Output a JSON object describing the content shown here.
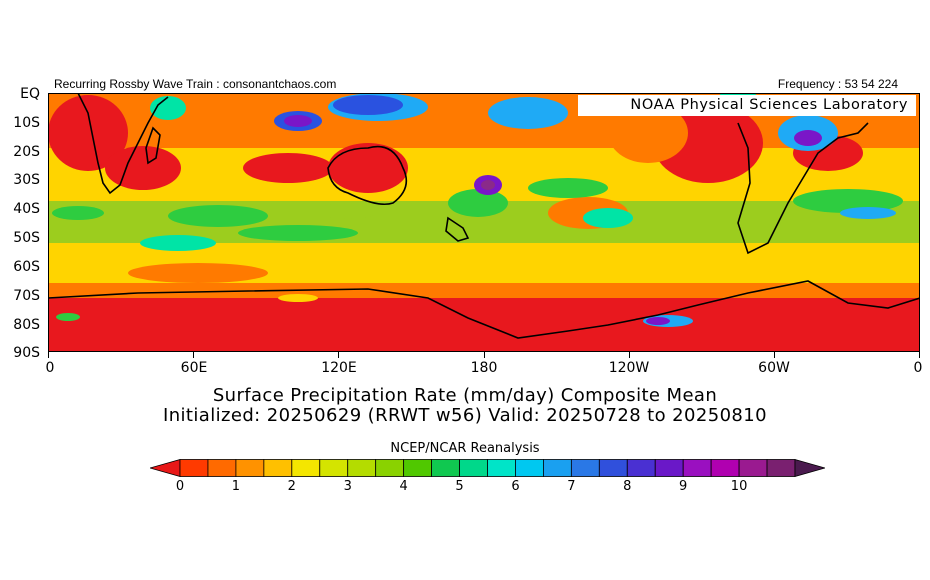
{
  "header": {
    "left_text": "Recurring Rossby Wave Train : consonantchaos.com",
    "right_text": "Frequency : 53 54 224",
    "credit": "NOAA Physical Sciences Laboratory"
  },
  "map": {
    "lat_labels": [
      "EQ",
      "10S",
      "20S",
      "30S",
      "40S",
      "50S",
      "60S",
      "70S",
      "80S",
      "90S"
    ],
    "lon_labels": [
      "0",
      "60E",
      "120E",
      "180",
      "120W",
      "60W",
      "0"
    ],
    "colors": {
      "c0": "#e8181e",
      "c1": "#ff7a00",
      "c2": "#ffd400",
      "c3": "#9ccd1e",
      "c4": "#2ecc40",
      "c5": "#00e4a6",
      "c6": "#1faaf5",
      "c7": "#2a52e0",
      "c8": "#7a16c8",
      "c9": "#8a2a8a",
      "c10": "#4e1f55",
      "land": "#000000"
    }
  },
  "titles": {
    "line1": "Surface Precipitation Rate (mm/day) Composite Mean",
    "line2": "Initialized: 20250629 (RRWT w56) Valid: 20250728 to 20250810",
    "source": "NCEP/NCAR Reanalysis"
  },
  "colorbar": {
    "labels": [
      "0",
      "1",
      "2",
      "3",
      "4",
      "5",
      "6",
      "7",
      "8",
      "9",
      "10"
    ],
    "colors": [
      "#e81818",
      "#ff3a00",
      "#ff6a00",
      "#ff9200",
      "#ffc000",
      "#f4e600",
      "#d4e400",
      "#b4dc00",
      "#8ad200",
      "#50c800",
      "#10c850",
      "#00d88a",
      "#00e4c8",
      "#00c8f0",
      "#1aa0f0",
      "#2a78e6",
      "#3050dc",
      "#4a30d2",
      "#6a18c8",
      "#9a10c0",
      "#b000b0",
      "#9a1a90",
      "#7a2070",
      "#4a1a4e"
    ]
  }
}
